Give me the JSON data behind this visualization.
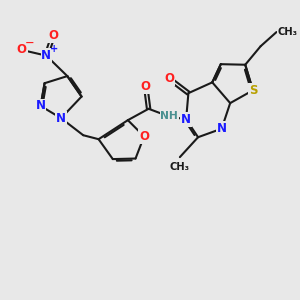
{
  "bg_color": "#e8e8e8",
  "bond_color": "#1a1a1a",
  "bond_lw": 1.5,
  "dbo": 0.06,
  "col_N": "#1a1aff",
  "col_O": "#ff2020",
  "col_S": "#b8a000",
  "col_NH": "#4a9090",
  "col_C": "#1a1a1a",
  "fs": 8.5,
  "fss": 7.2,
  "figsize": [
    3.0,
    3.0
  ],
  "dpi": 100,
  "xlim": [
    0,
    10
  ],
  "ylim": [
    0,
    10
  ]
}
